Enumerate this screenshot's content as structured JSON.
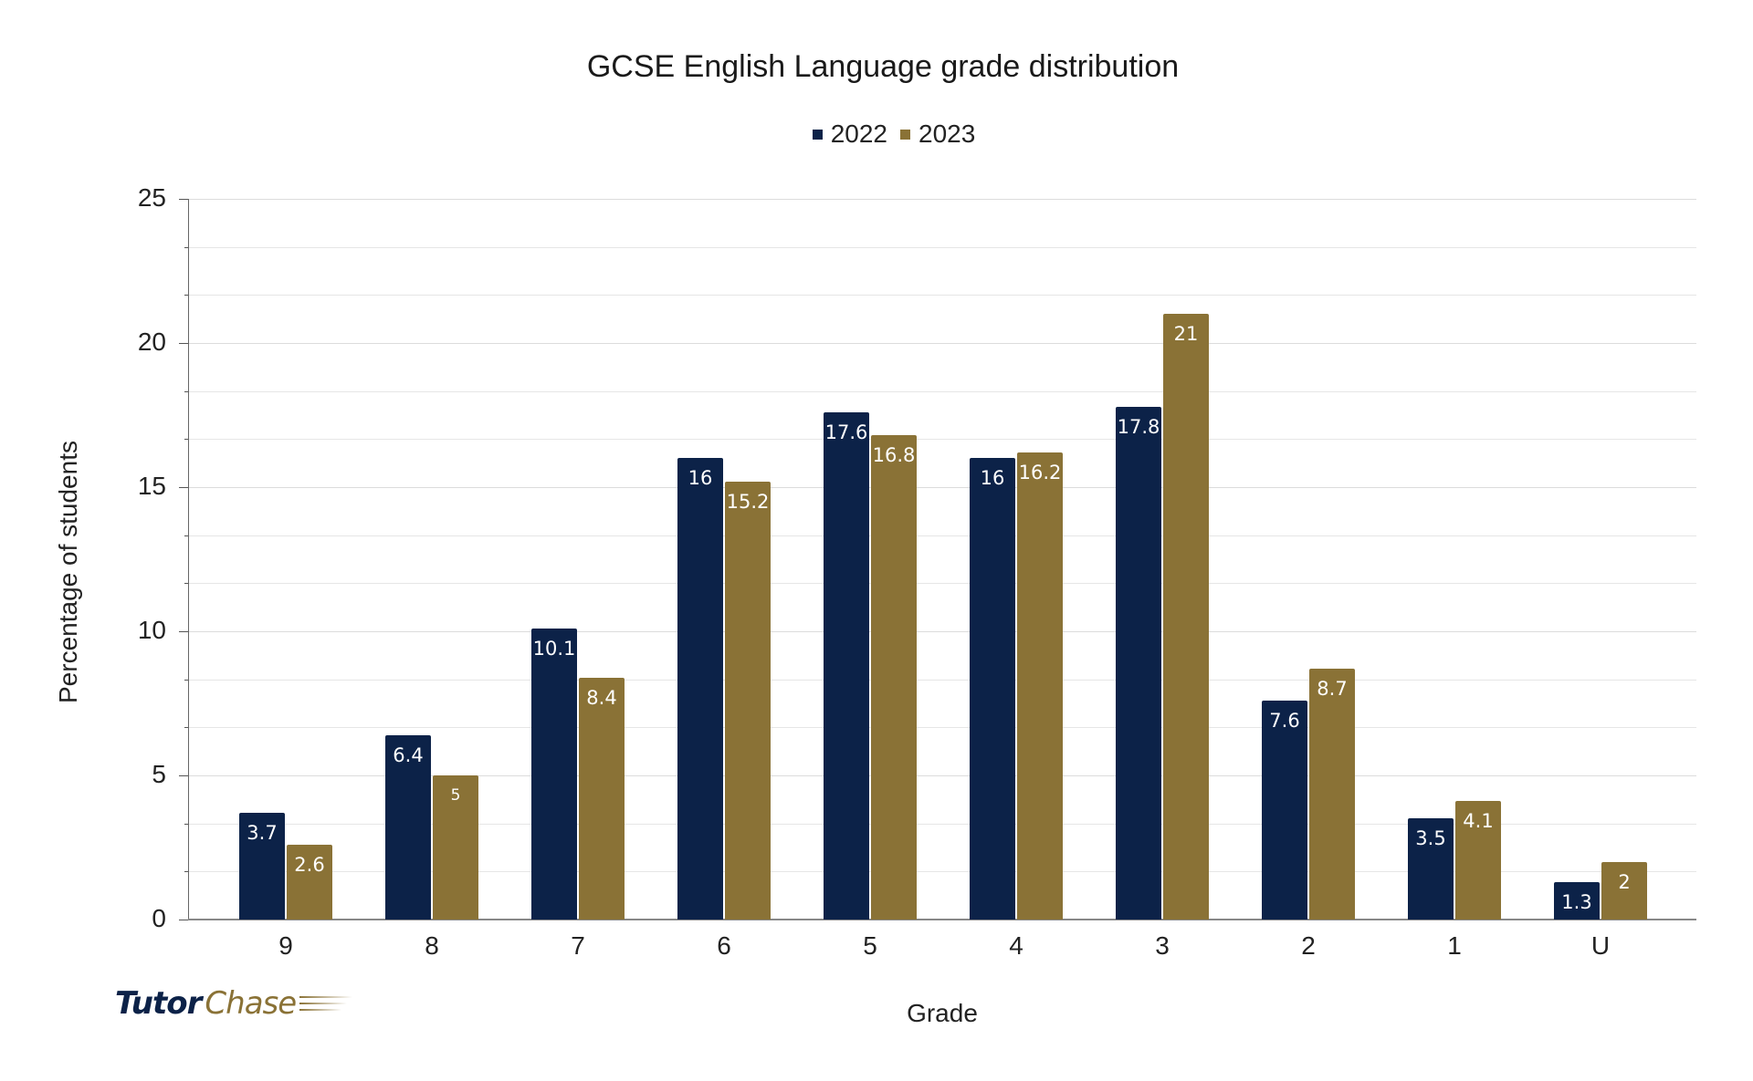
{
  "chart_data": {
    "type": "bar",
    "title": "GCSE English Language grade distribution",
    "xlabel": "Grade",
    "ylabel": "Percentage of students",
    "categories": [
      "9",
      "8",
      "7",
      "6",
      "5",
      "4",
      "3",
      "2",
      "1",
      "U"
    ],
    "series": [
      {
        "name": "2022",
        "color": "#0c2248",
        "values": [
          3.7,
          6.4,
          10.1,
          16,
          17.6,
          16,
          17.8,
          7.6,
          3.5,
          1.3
        ]
      },
      {
        "name": "2023",
        "color": "#8a7236",
        "values": [
          2.6,
          5,
          8.4,
          15.2,
          16.8,
          16.2,
          21,
          8.7,
          4.1,
          2
        ]
      }
    ],
    "ylim": [
      0,
      25
    ],
    "yticks": [
      0,
      5,
      10,
      15,
      20,
      25
    ],
    "grid": true,
    "legend_position": "top-center",
    "data_labels": true
  },
  "branding": {
    "logo_part1": "Tutor",
    "logo_part2": "Chase"
  }
}
